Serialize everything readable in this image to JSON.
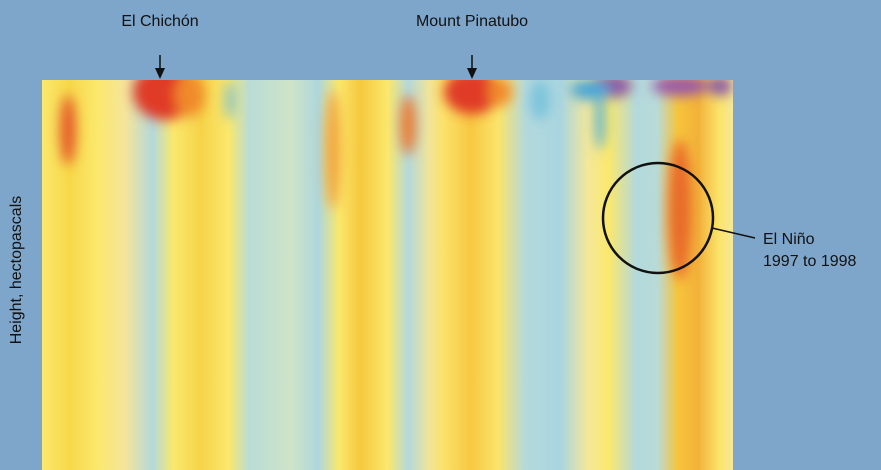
{
  "chart_data": {
    "type": "heatmap",
    "ylabel": "Height, hectopascals",
    "annotations": [
      "El Chichón",
      "Mount Pinatubo",
      [
        "El Niño",
        "1997 to 1998"
      ]
    ]
  }
}
